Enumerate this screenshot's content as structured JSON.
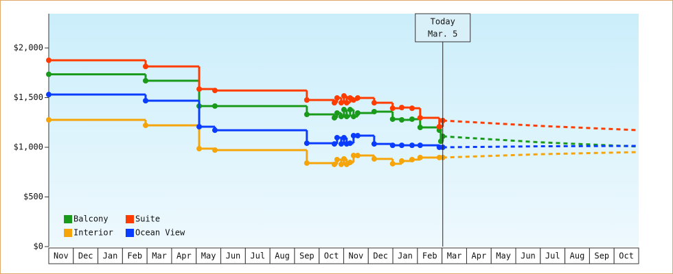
{
  "chart_data": {
    "type": "step-line",
    "categories": [
      "Nov",
      "Dec",
      "Jan",
      "Feb",
      "Mar",
      "Apr",
      "May",
      "Jun",
      "Jul",
      "Aug",
      "Sep",
      "Oct",
      "Nov",
      "Dec",
      "Jan",
      "Feb",
      "Mar",
      "Apr",
      "May",
      "Jun",
      "Jul",
      "Aug",
      "Sep",
      "Oct"
    ],
    "xlim": [
      0,
      24
    ],
    "ylim": [
      0,
      2345
    ],
    "yticks": [
      {
        "value": 0,
        "label": "$0"
      },
      {
        "value": 500,
        "label": "$500"
      },
      {
        "value": 1000,
        "label": "$1,000"
      },
      {
        "value": 1500,
        "label": "$1,500"
      },
      {
        "value": 2000,
        "label": "$2,000"
      }
    ],
    "legend": "bottom-left",
    "annotation": {
      "lines": [
        "Today",
        "Mar. 5"
      ],
      "x": 16.03
    },
    "forecast_x": [
      16.03,
      20,
      24
    ],
    "series": [
      {
        "name": "Balcony",
        "color": "#1a9a1a",
        "x": [
          0,
          3.94,
          6.12,
          6.76,
          10.5,
          11.62,
          11.73,
          11.9,
          12.01,
          12.12,
          12.26,
          12.4,
          12.57,
          13.24,
          13.99,
          14.36,
          14.78,
          15.11,
          15.89,
          15.95,
          16.03
        ],
        "values": [
          1735,
          1670,
          1415,
          1415,
          1331,
          1297,
          1345,
          1310,
          1379,
          1310,
          1379,
          1310,
          1345,
          1359,
          1283,
          1276,
          1283,
          1200,
          1172,
          1060,
          1110
        ],
        "forecast_values": [
          1110,
          1050,
          1007
        ]
      },
      {
        "name": "Suite",
        "color": "#ff3c00",
        "x": [
          0,
          3.94,
          6.12,
          6.76,
          10.5,
          11.62,
          11.73,
          11.9,
          12.01,
          12.12,
          12.26,
          12.4,
          12.57,
          13.24,
          13.99,
          14.36,
          14.78,
          15.11,
          15.89,
          16.03
        ],
        "values": [
          1876,
          1814,
          1586,
          1572,
          1476,
          1448,
          1497,
          1448,
          1517,
          1448,
          1497,
          1476,
          1497,
          1448,
          1393,
          1400,
          1393,
          1297,
          1207,
          1269
        ],
        "forecast_values": [
          1269,
          1215,
          1172
        ]
      },
      {
        "name": "Interior",
        "color": "#f5a50a",
        "x": [
          0,
          3.94,
          6.12,
          6.76,
          10.5,
          11.62,
          11.73,
          11.9,
          12.01,
          12.12,
          12.26,
          12.4,
          12.57,
          13.24,
          13.99,
          14.36,
          14.78,
          15.11,
          15.89,
          16.03
        ],
        "values": [
          1276,
          1221,
          986,
          972,
          841,
          828,
          876,
          828,
          883,
          828,
          848,
          917,
          917,
          883,
          834,
          862,
          876,
          897,
          897,
          897
        ],
        "forecast_values": [
          897,
          930,
          952
        ]
      },
      {
        "name": "Ocean View",
        "color": "#0a3cff",
        "x": [
          0,
          3.94,
          6.12,
          6.76,
          10.5,
          11.62,
          11.73,
          11.9,
          12.01,
          12.12,
          12.26,
          12.4,
          12.57,
          13.24,
          13.99,
          14.36,
          14.78,
          15.11,
          15.89,
          16.03
        ],
        "values": [
          1531,
          1469,
          1207,
          1172,
          1041,
          1034,
          1097,
          1034,
          1097,
          1034,
          1041,
          1117,
          1117,
          1034,
          1020,
          1020,
          1020,
          1020,
          1000,
          1000
        ],
        "forecast_values": [
          1000,
          1010,
          1014
        ]
      }
    ]
  }
}
